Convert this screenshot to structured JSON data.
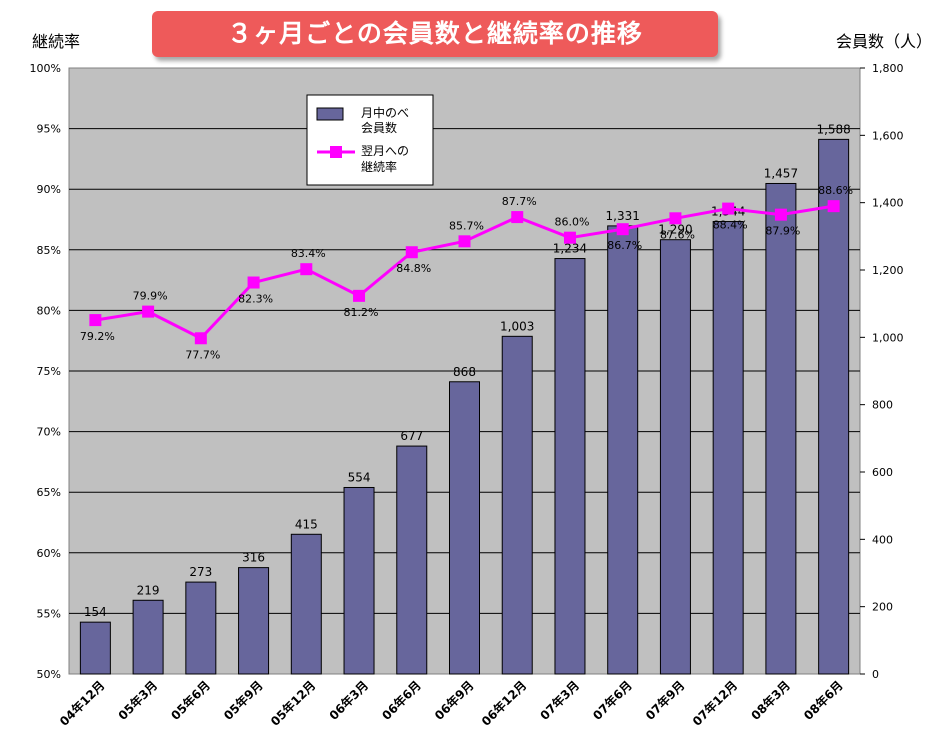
{
  "chart_data": {
    "type": "bar",
    "title": "３ヶ月ごとの会員数と継続率の推移",
    "ylabel_left": "継続率",
    "ylabel_right": "会員数（人）",
    "categories": [
      "04年12月",
      "05年3月",
      "05年6月",
      "05年9月",
      "05年12月",
      "06年3月",
      "06年6月",
      "06年9月",
      "06年12月",
      "07年3月",
      "07年6月",
      "07年9月",
      "07年12月",
      "08年3月",
      "08年6月"
    ],
    "series": [
      {
        "name": "月中のべ会員数",
        "type": "bar",
        "axis": "right",
        "color": "#67669c",
        "values": [
          154,
          219,
          273,
          316,
          415,
          554,
          677,
          868,
          1003,
          1234,
          1331,
          1290,
          1344,
          1457,
          1588
        ],
        "labels": [
          "154",
          "219",
          "273",
          "316",
          "415",
          "554",
          "677",
          "868",
          "1,003",
          "1,234",
          "1,331",
          "1,290",
          "1,344",
          "1,457",
          "1,588"
        ]
      },
      {
        "name": "翌月への継続率",
        "type": "line",
        "axis": "left",
        "color": "#ff00ff",
        "values": [
          79.2,
          79.9,
          77.7,
          82.3,
          83.4,
          81.2,
          84.8,
          85.7,
          87.7,
          86.0,
          86.7,
          87.6,
          88.4,
          87.9,
          88.6
        ],
        "labels": [
          "79.2%",
          "79.9%",
          "77.7%",
          "82.3%",
          "83.4%",
          "81.2%",
          "84.8%",
          "85.7%",
          "87.7%",
          "86.0%",
          "86.7%",
          "87.6%",
          "88.4%",
          "87.9%",
          "88.6%"
        ]
      }
    ],
    "legend": {
      "bar_lines": [
        "月中のべ",
        "会員数"
      ],
      "line_lines": [
        "翌月への",
        "継続率"
      ],
      "placement": "top-center"
    },
    "y_left": {
      "min": 50,
      "max": 100,
      "ticks": [
        "50%",
        "55%",
        "60%",
        "65%",
        "70%",
        "75%",
        "80%",
        "85%",
        "90%",
        "95%",
        "100%"
      ]
    },
    "y_right": {
      "min": 0,
      "max": 1800,
      "ticks": [
        "0",
        "200",
        "400",
        "600",
        "800",
        "1,000",
        "1,200",
        "1,400",
        "1,600",
        "1,800"
      ]
    },
    "grid": true,
    "plot_background": "#c0c0c0"
  }
}
